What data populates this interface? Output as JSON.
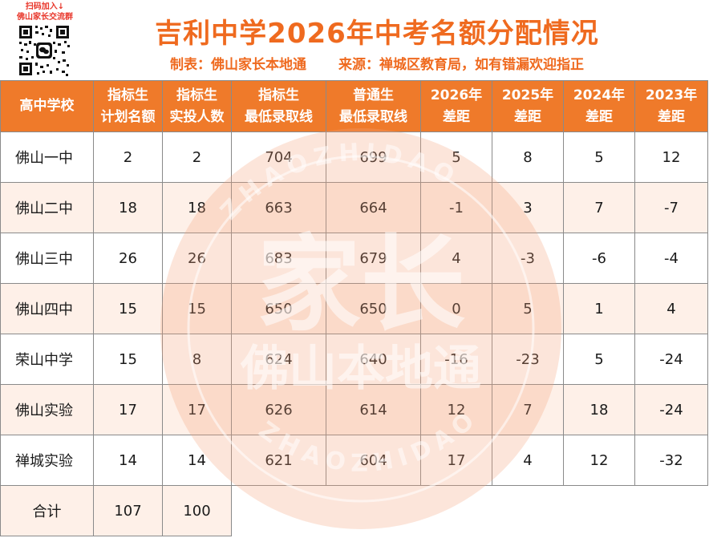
{
  "qr": {
    "line1": "扫码加入↓",
    "line2": "佛山家长交流群"
  },
  "title": "吉利中学2026年中考名额分配情况",
  "subtitle": {
    "maker": "制表：佛山家长本地通",
    "source": "来源：禅城区教育局，如有错漏欢迎指正"
  },
  "watermark": {
    "main": "家长",
    "sub": "佛山本地通",
    "ring_top": "ZHAOZHIDAO",
    "ring_bottom": "ZHAOZHIDAO"
  },
  "colors": {
    "accent": "#ef7a2a",
    "title": "#ef6a1f",
    "zebra": "#fdebe0"
  },
  "table": {
    "headers": [
      {
        "l1": "高中学校",
        "l2": ""
      },
      {
        "l1": "指标生",
        "l2": "计划名额"
      },
      {
        "l1": "指标生",
        "l2": "实投人数"
      },
      {
        "l1": "指标生",
        "l2": "最低录取线"
      },
      {
        "l1": "普通生",
        "l2": "最低录取线"
      },
      {
        "l1": "2026年",
        "l2": "差距"
      },
      {
        "l1": "2025年",
        "l2": "差距"
      },
      {
        "l1": "2024年",
        "l2": "差距"
      },
      {
        "l1": "2023年",
        "l2": "差距"
      }
    ],
    "rows": [
      [
        "佛山一中",
        "2",
        "2",
        "704",
        "699",
        "5",
        "8",
        "5",
        "12"
      ],
      [
        "佛山二中",
        "18",
        "18",
        "663",
        "664",
        "-1",
        "3",
        "7",
        "-7"
      ],
      [
        "佛山三中",
        "26",
        "26",
        "683",
        "679",
        "4",
        "-3",
        "-6",
        "-4"
      ],
      [
        "佛山四中",
        "15",
        "15",
        "650",
        "650",
        "0",
        "5",
        "1",
        "4"
      ],
      [
        "荣山中学",
        "15",
        "8",
        "624",
        "640",
        "-16",
        "-23",
        "5",
        "-24"
      ],
      [
        "佛山实验",
        "17",
        "17",
        "626",
        "614",
        "12",
        "7",
        "18",
        "-24"
      ],
      [
        "禅城实验",
        "14",
        "14",
        "621",
        "604",
        "17",
        "4",
        "12",
        "-32"
      ]
    ],
    "total": {
      "label": "合计",
      "plan": "107",
      "actual": "100"
    }
  }
}
